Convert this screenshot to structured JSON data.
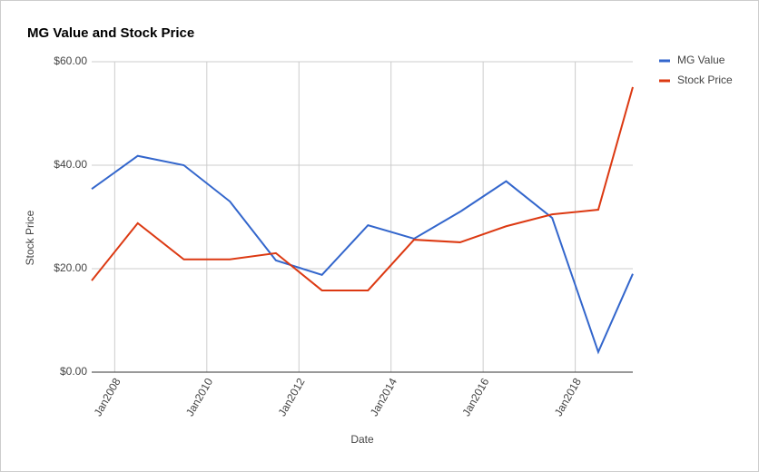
{
  "chart_data": {
    "type": "line",
    "title": "MG Value and Stock Price",
    "x_label": "Date",
    "y_label": "Stock Price",
    "x": [
      2007.5,
      2008.5,
      2009.5,
      2010.5,
      2011.5,
      2012.5,
      2013.5,
      2014.5,
      2015.5,
      2016.5,
      2017.5,
      2018.5,
      2019.25
    ],
    "series": [
      {
        "name": "MG Value",
        "color": "#3366cc",
        "values": [
          35.4,
          41.8,
          40.0,
          33.0,
          21.6,
          18.8,
          28.4,
          25.8,
          31.0,
          36.9,
          29.8,
          3.9,
          19.0
        ]
      },
      {
        "name": "Stock Price",
        "color": "#dc3912",
        "values": [
          17.7,
          28.8,
          21.8,
          21.8,
          23.0,
          15.8,
          15.8,
          25.6,
          25.1,
          28.2,
          30.5,
          31.4,
          55.1
        ]
      }
    ],
    "xlim": [
      2007.5,
      2019.25
    ],
    "xticks": [
      {
        "value": 2008,
        "label": "Jan2008"
      },
      {
        "value": 2010,
        "label": "Jan2010"
      },
      {
        "value": 2012,
        "label": "Jan2012"
      },
      {
        "value": 2014,
        "label": "Jan2014"
      },
      {
        "value": 2016,
        "label": "Jan2016"
      },
      {
        "value": 2018,
        "label": "Jan2018"
      }
    ],
    "ylim": [
      0,
      60
    ],
    "yticks": [
      {
        "value": 0,
        "label": "$0.00"
      },
      {
        "value": 20,
        "label": "$20.00"
      },
      {
        "value": 40,
        "label": "$40.00"
      },
      {
        "value": 60,
        "label": "$60.00"
      }
    ],
    "grid": true,
    "legend": "right"
  }
}
